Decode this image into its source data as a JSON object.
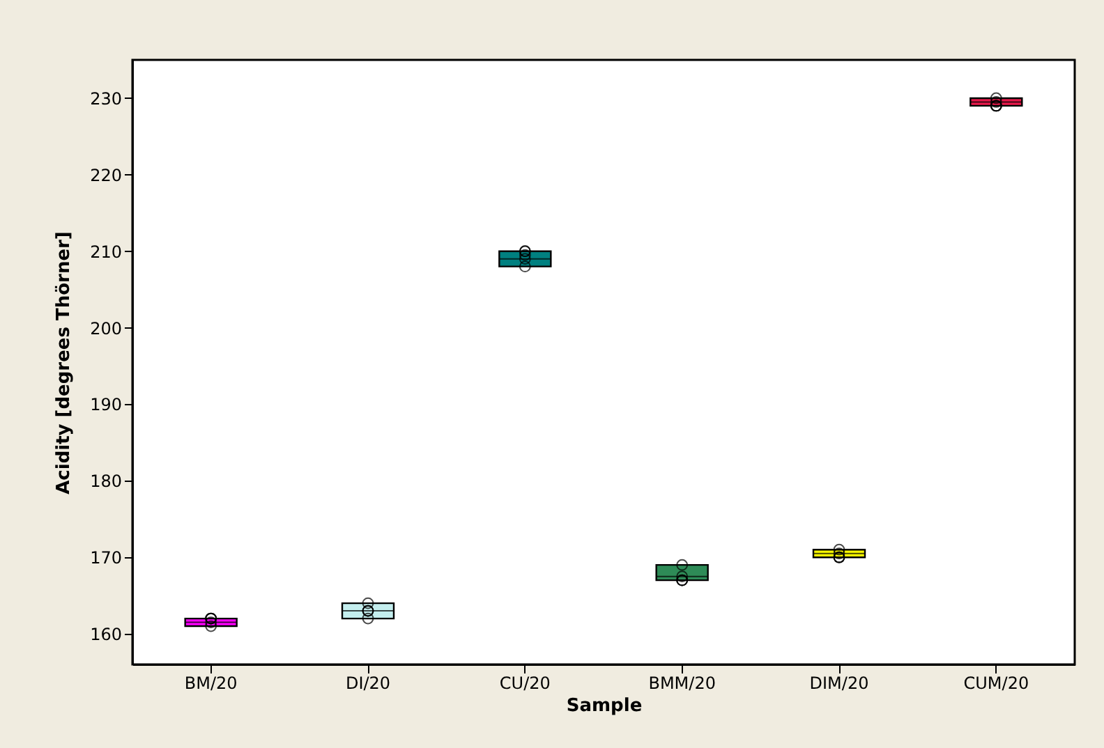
{
  "chart_data": {
    "type": "box",
    "xlabel": "Sample",
    "ylabel": "Acidity [degrees Thörner]",
    "categories": [
      "BM/20",
      "DI/20",
      "CU/20",
      "BMM/20",
      "DIM/20",
      "CUM/20"
    ],
    "colors": [
      "#ff00ff",
      "#c4eeee",
      "#008080",
      "#2e8b57",
      "#ffff00",
      "#e8194b"
    ],
    "boxes": [
      {
        "low": 161,
        "q1": 161,
        "median": 161.5,
        "q3": 162,
        "high": 162
      },
      {
        "low": 162,
        "q1": 162,
        "median": 163,
        "q3": 164,
        "high": 164
      },
      {
        "low": 208,
        "q1": 208,
        "median": 209,
        "q3": 210,
        "high": 210
      },
      {
        "low": 167,
        "q1": 167,
        "median": 167.5,
        "q3": 169,
        "high": 169
      },
      {
        "low": 170,
        "q1": 170,
        "median": 170.5,
        "q3": 171,
        "high": 171
      },
      {
        "low": 229,
        "q1": 229,
        "median": 229.5,
        "q3": 230,
        "high": 230
      }
    ],
    "series": [
      {
        "type": "scatter",
        "color": "#000000",
        "x": [
          "BM/20",
          "BM/20",
          "BM/20",
          "BM/20",
          "BM/20",
          "DI/20",
          "DI/20",
          "DI/20",
          "DI/20",
          "DI/20",
          "CU/20",
          "CU/20",
          "CU/20",
          "CU/20",
          "CU/20",
          "BMM/20",
          "BMM/20",
          "BMM/20",
          "BMM/20",
          "BMM/20",
          "DIM/20",
          "DIM/20",
          "DIM/20",
          "DIM/20",
          "DIM/20",
          "CUM/20",
          "CUM/20",
          "CUM/20",
          "CUM/20",
          "CUM/20"
        ],
        "values": [
          161,
          162,
          162,
          161.5,
          162,
          162,
          164,
          163,
          163,
          163,
          208,
          210,
          210,
          209,
          209.5,
          169,
          167,
          167,
          167.5,
          167,
          170,
          171,
          170.5,
          170,
          170,
          229,
          229,
          230,
          229.5,
          229
        ]
      }
    ],
    "marker": "circle",
    "ylim": [
      156,
      235
    ],
    "yticks": [
      160,
      170,
      180,
      190,
      200,
      210,
      220,
      230
    ]
  }
}
